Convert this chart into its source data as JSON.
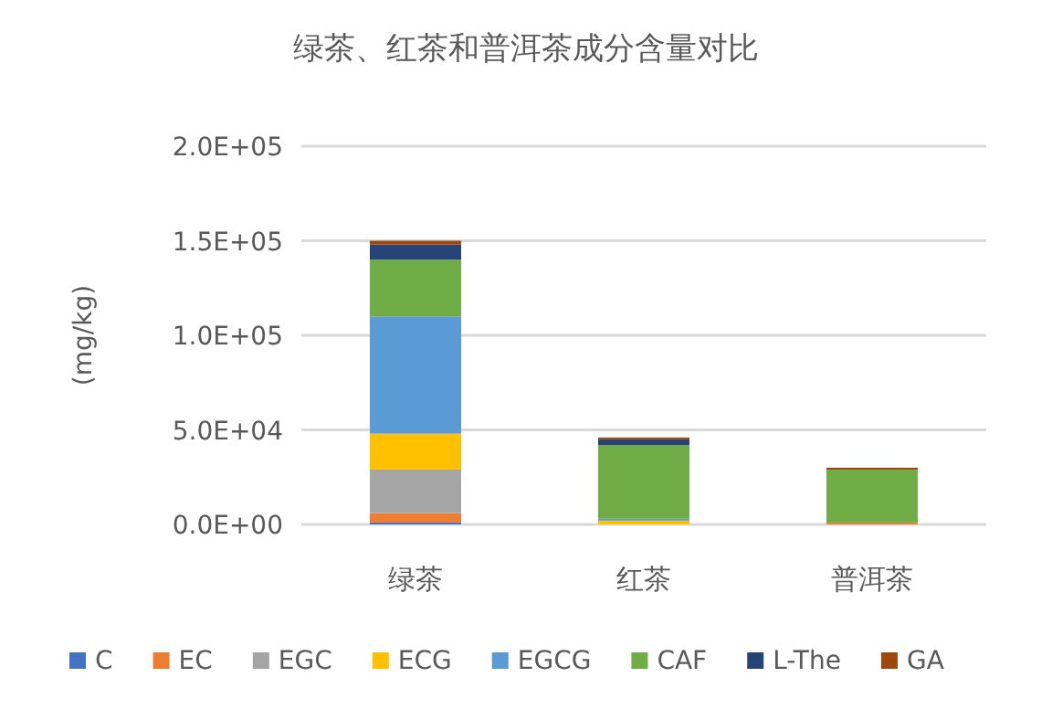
{
  "chart_data": {
    "type": "bar",
    "stacked": true,
    "title": "绿茶、红茶和普洱茶成分含量对比",
    "ylabel": "(mg/kg)",
    "categories": [
      "绿茶",
      "红茶",
      "普洱茶"
    ],
    "ylim": [
      0,
      200000
    ],
    "yticks": [
      {
        "value": 0,
        "label": "0.0E+00"
      },
      {
        "value": 50000,
        "label": "5.0E+04"
      },
      {
        "value": 100000,
        "label": "1.0E+05"
      },
      {
        "value": 150000,
        "label": "1.5E+05"
      },
      {
        "value": 200000,
        "label": "2.0E+05"
      }
    ],
    "grid": "y",
    "legend": "bottom",
    "series": [
      {
        "name": "C",
        "color": "#4472c4",
        "values": [
          1000,
          null,
          null
        ]
      },
      {
        "name": "EC",
        "color": "#ed7d31",
        "values": [
          5000,
          null,
          1000
        ]
      },
      {
        "name": "EGC",
        "color": "#a5a5a5",
        "values": [
          23000,
          null,
          null
        ]
      },
      {
        "name": "ECG",
        "color": "#ffc000",
        "values": [
          19000,
          2000,
          null
        ]
      },
      {
        "name": "EGCG",
        "color": "#5b9bd5",
        "values": [
          62000,
          1000,
          null
        ]
      },
      {
        "name": "CAF",
        "color": "#70ad47",
        "values": [
          30000,
          39000,
          28000
        ]
      },
      {
        "name": "L-The",
        "color": "#264478",
        "values": [
          8000,
          3000,
          null
        ]
      },
      {
        "name": "GA",
        "color": "#9e480e",
        "values": [
          2000,
          1000,
          1000
        ]
      }
    ]
  }
}
